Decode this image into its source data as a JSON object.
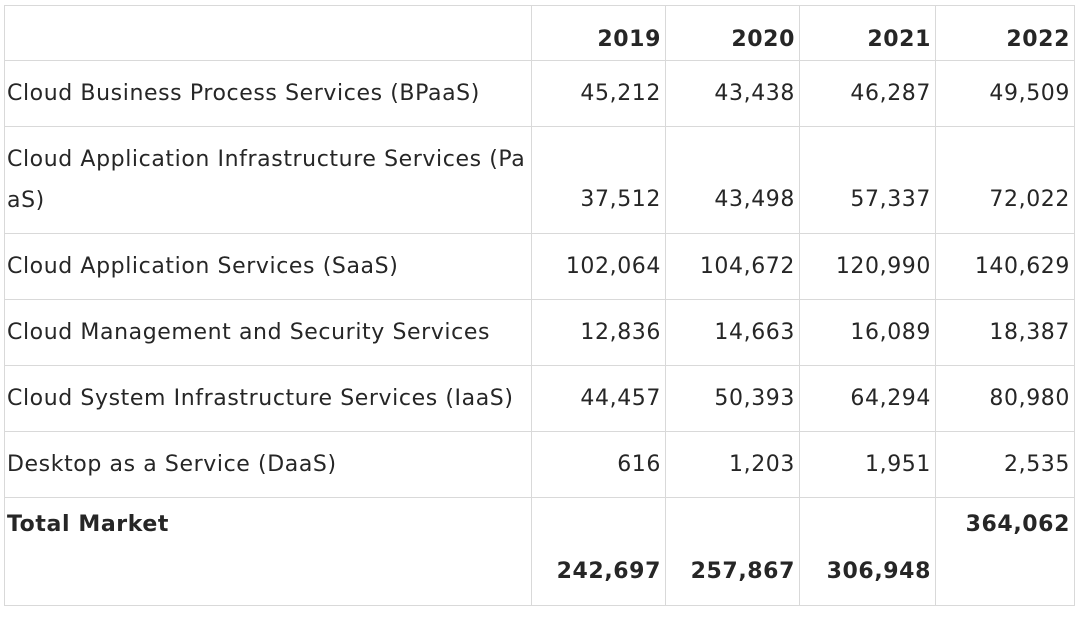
{
  "table": {
    "headers": [
      "",
      "2019",
      "2020",
      "2021",
      "2022"
    ],
    "rows": [
      {
        "label": "Cloud Business Process Services (BPaaS)",
        "v2019": "45,212",
        "v2020": "43,438",
        "v2021": "46,287",
        "v2022": "49,509"
      },
      {
        "label_line1": "Cloud Application Infrastructure Services (Pa",
        "label_line2": "aS)",
        "v2019": "37,512",
        "v2020": "43,498",
        "v2021": "57,337",
        "v2022": "72,022"
      },
      {
        "label": "Cloud Application Services (SaaS)",
        "v2019": "102,064",
        "v2020": "104,672",
        "v2021": "120,990",
        "v2022": "140,629"
      },
      {
        "label": "Cloud Management and Security Services",
        "v2019": "12,836",
        "v2020": "14,663",
        "v2021": "16,089",
        "v2022": "18,387"
      },
      {
        "label": "Cloud System Infrastructure Services (IaaS)",
        "v2019": "44,457",
        "v2020": "50,393",
        "v2021": "64,294",
        "v2022": "80,980"
      },
      {
        "label": "Desktop as a Service (DaaS)",
        "v2019": "616",
        "v2020": "1,203",
        "v2021": "1,951",
        "v2022": "2,535"
      }
    ],
    "total": {
      "label": "Total Market",
      "v2019": "242,697",
      "v2020": "257,867",
      "v2021": "306,948",
      "v2022": "364,062"
    }
  }
}
